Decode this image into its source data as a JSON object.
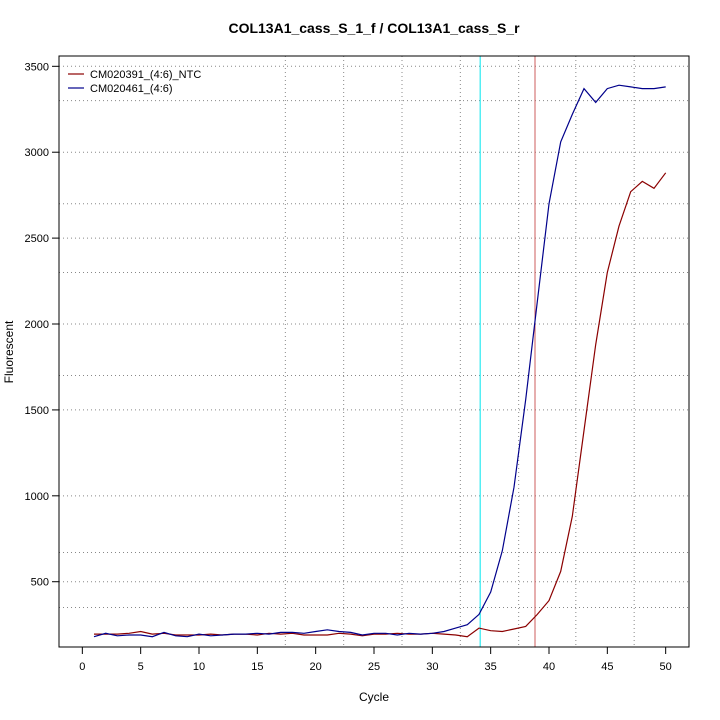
{
  "chart_data": {
    "type": "line",
    "title": "COL13A1_cass_S_1_f / COL13A1_cass_S_r",
    "xlabel": "Cycle",
    "ylabel": "Fluorescent",
    "xlim": [
      -2,
      52
    ],
    "ylim": [
      120,
      3560
    ],
    "x_ticks": [
      0,
      5,
      10,
      15,
      20,
      25,
      30,
      35,
      40,
      45,
      50
    ],
    "y_ticks": [
      500,
      1000,
      1500,
      2000,
      2500,
      3000,
      3500
    ],
    "grid": true,
    "legend_position": "top-left",
    "colors": {
      "series_ntc": "#8b0000",
      "series_sample": "#00008b",
      "threshold_ntc": "#cd5c5c",
      "threshold_sample": "#00e5ee",
      "grid": "#888888"
    },
    "x": [
      1,
      2,
      3,
      4,
      5,
      6,
      7,
      8,
      9,
      10,
      11,
      12,
      13,
      14,
      15,
      16,
      17,
      18,
      19,
      20,
      21,
      22,
      23,
      24,
      25,
      26,
      27,
      28,
      29,
      30,
      31,
      32,
      33,
      34,
      35,
      36,
      37,
      38,
      39,
      40,
      41,
      42,
      43,
      44,
      45,
      46,
      47,
      48,
      49,
      50
    ],
    "series": [
      {
        "name": "CM020391_(4:6)_NTC",
        "color": "#8b0000",
        "values": [
          195,
          195,
          195,
          200,
          210,
          195,
          200,
          190,
          190,
          190,
          195,
          190,
          195,
          195,
          190,
          200,
          195,
          200,
          190,
          190,
          190,
          200,
          195,
          185,
          195,
          195,
          200,
          195,
          195,
          200,
          195,
          190,
          180,
          230,
          215,
          210,
          225,
          240,
          310,
          390,
          560,
          880,
          1380,
          1880,
          2300,
          2570,
          2770,
          2830,
          2790,
          2880
        ]
      },
      {
        "name": "CM020461_(4:6)",
        "color": "#00008b",
        "values": [
          180,
          200,
          185,
          190,
          190,
          180,
          205,
          185,
          180,
          195,
          185,
          190,
          195,
          195,
          200,
          195,
          205,
          205,
          200,
          210,
          220,
          210,
          205,
          190,
          200,
          200,
          190,
          200,
          195,
          200,
          210,
          230,
          250,
          310,
          440,
          680,
          1050,
          1560,
          2130,
          2700,
          3060,
          3220,
          3370,
          3290,
          3370,
          3390,
          3380,
          3370,
          3370,
          3380
        ]
      }
    ],
    "vlines": [
      {
        "x": 34.1,
        "color": "#00e5ee"
      },
      {
        "x": 38.8,
        "color": "#cd5c5c"
      }
    ],
    "grid_x": [
      17.4,
      22.4,
      27.4,
      32.4,
      37.4,
      42.3,
      47.3
    ],
    "grid_y": [
      350,
      500,
      670,
      1000,
      1500,
      1700,
      2000,
      2300,
      2500,
      2700,
      3000,
      3300,
      3500
    ]
  }
}
